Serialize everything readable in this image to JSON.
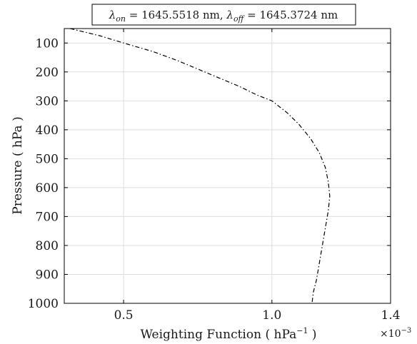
{
  "chart_data": {
    "type": "line",
    "title": {
      "lambda_on_label": "λ",
      "lambda_on_sub": "on",
      "lambda_on_value": " = 1645.5518 nm, ",
      "lambda_off_label": "λ",
      "lambda_off_sub": "off",
      "lambda_off_value": " = 1645.3724 nm"
    },
    "xlabel": {
      "text": "Weighting Function ( hPa",
      "sup": "−1",
      "close": " )"
    },
    "ylabel": "Pressure ( hPa )",
    "x_multiplier": {
      "base": "×10",
      "exp": "−3"
    },
    "xlim": [
      0.0003,
      0.0014
    ],
    "ylim": [
      1000,
      50
    ],
    "y_reversed": true,
    "grid": true,
    "xticks": [
      0.0005,
      0.001,
      0.0014
    ],
    "xtick_labels": [
      "0.5",
      "1.0",
      "1.4"
    ],
    "yticks": [
      100,
      200,
      300,
      400,
      500,
      600,
      700,
      800,
      900,
      1000
    ],
    "ytick_labels": [
      "100",
      "200",
      "300",
      "400",
      "500",
      "600",
      "700",
      "800",
      "900",
      "1000"
    ],
    "series": [
      {
        "line_style": "dash-dot",
        "color": "#000000",
        "points": [
          {
            "x": 0.00032,
            "y": 50
          },
          {
            "x": 0.00036,
            "y": 60
          },
          {
            "x": 0.00042,
            "y": 75
          },
          {
            "x": 0.0005,
            "y": 100
          },
          {
            "x": 0.0006,
            "y": 130
          },
          {
            "x": 0.00068,
            "y": 160
          },
          {
            "x": 0.00075,
            "y": 190
          },
          {
            "x": 0.00082,
            "y": 220
          },
          {
            "x": 0.00089,
            "y": 250
          },
          {
            "x": 0.00095,
            "y": 280
          },
          {
            "x": 0.001,
            "y": 300
          },
          {
            "x": 0.00105,
            "y": 340
          },
          {
            "x": 0.00109,
            "y": 380
          },
          {
            "x": 0.00113,
            "y": 430
          },
          {
            "x": 0.00116,
            "y": 480
          },
          {
            "x": 0.00118,
            "y": 530
          },
          {
            "x": 0.00119,
            "y": 580
          },
          {
            "x": 0.001195,
            "y": 630
          },
          {
            "x": 0.00119,
            "y": 680
          },
          {
            "x": 0.00118,
            "y": 740
          },
          {
            "x": 0.00117,
            "y": 800
          },
          {
            "x": 0.00116,
            "y": 860
          },
          {
            "x": 0.00115,
            "y": 920
          },
          {
            "x": 0.00114,
            "y": 960
          },
          {
            "x": 0.001135,
            "y": 1000
          }
        ]
      }
    ]
  }
}
